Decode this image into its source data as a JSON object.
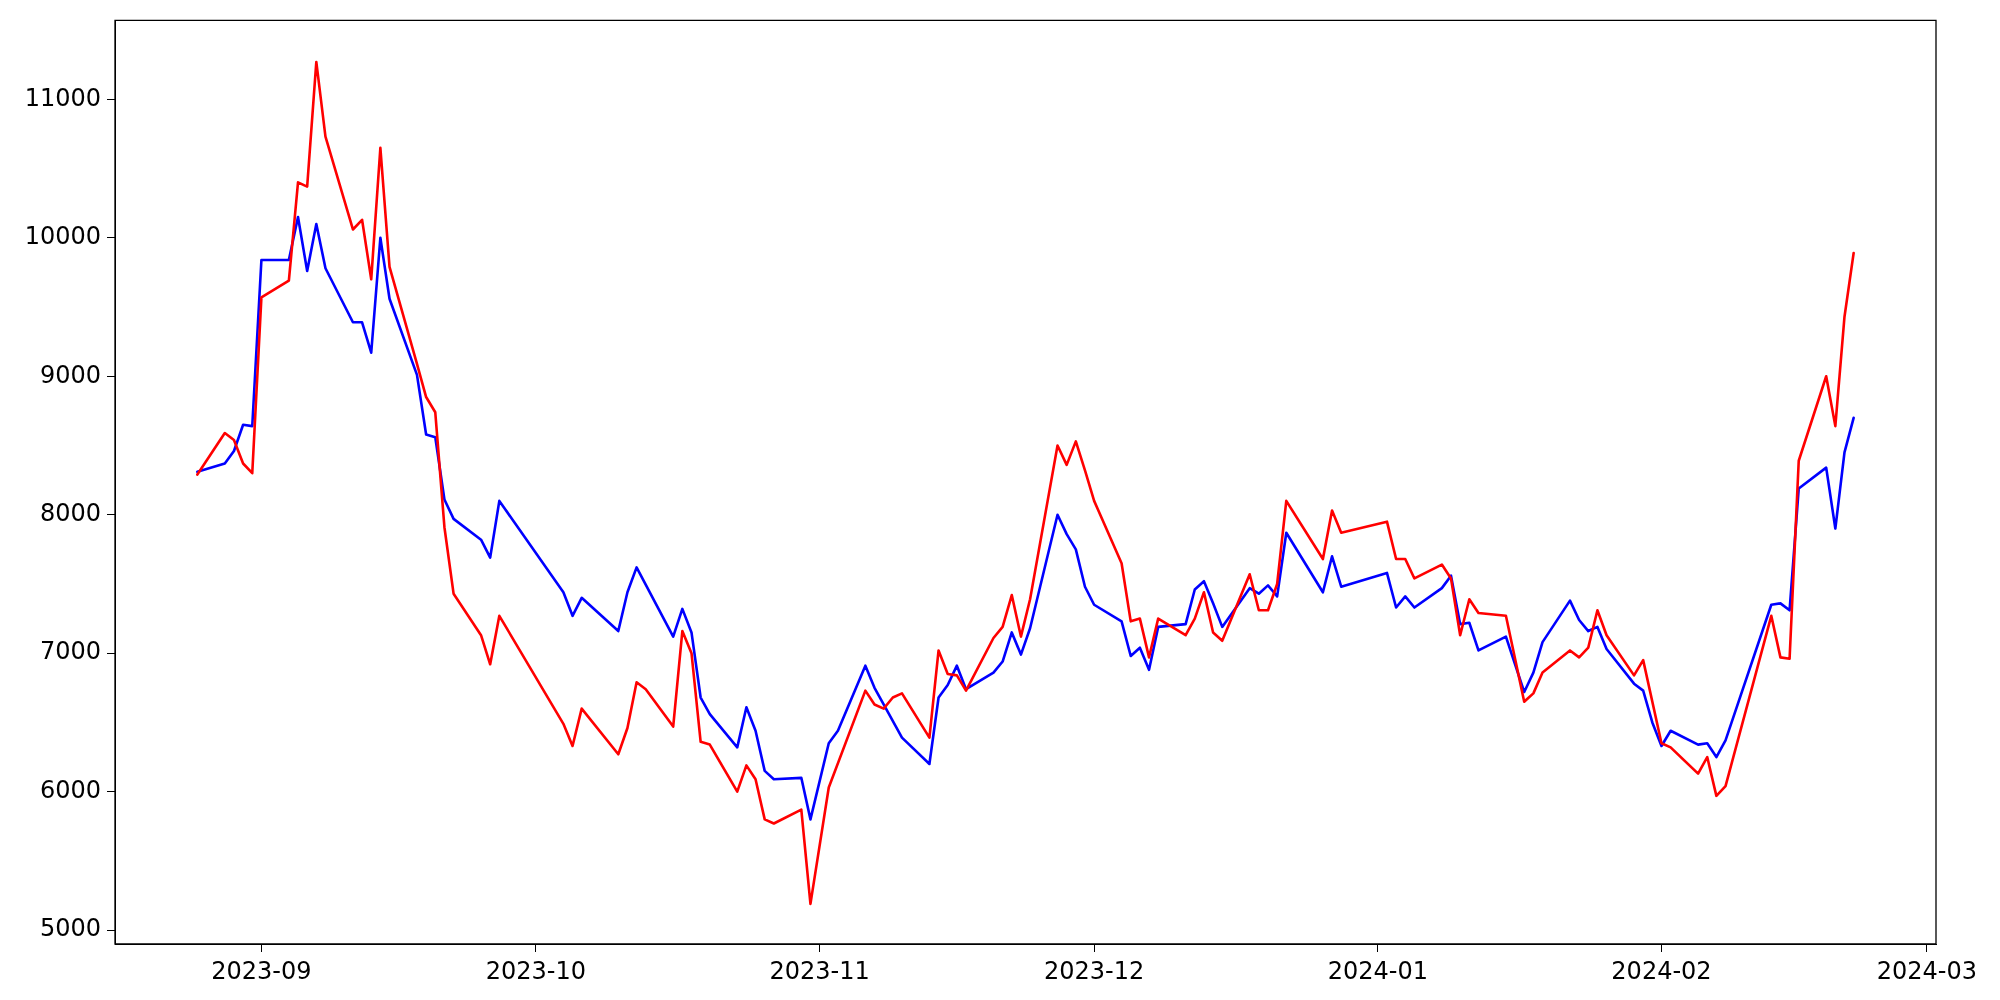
{
  "chart_data": {
    "type": "line",
    "ylim": [
      4900,
      11570
    ],
    "yticks": [
      5000,
      6000,
      7000,
      8000,
      9000,
      10000,
      11000
    ],
    "xlim": [
      "2023-08-16",
      "2024-03-02"
    ],
    "xticks": [
      {
        "value": "2023-09-01",
        "label": "2023-09"
      },
      {
        "value": "2023-10-01",
        "label": "2023-10"
      },
      {
        "value": "2023-11-01",
        "label": "2023-11"
      },
      {
        "value": "2023-12-01",
        "label": "2023-12"
      },
      {
        "value": "2024-01-01",
        "label": "2024-01"
      },
      {
        "value": "2024-02-01",
        "label": "2024-02"
      },
      {
        "value": "2024-03-01",
        "label": "2024-03"
      }
    ],
    "grid": false,
    "legend": false,
    "marker": "none",
    "line_style": "solid",
    "series": [
      {
        "color": "#ff0000",
        "x": [
          "2023-08-25",
          "2023-08-28",
          "2023-08-29",
          "2023-08-30",
          "2023-08-31",
          "2023-09-01",
          "2023-09-04",
          "2023-09-05",
          "2023-09-06",
          "2023-09-07",
          "2023-09-08",
          "2023-09-11",
          "2023-09-12",
          "2023-09-13",
          "2023-09-14",
          "2023-09-15",
          "2023-09-18",
          "2023-09-19",
          "2023-09-20",
          "2023-09-21",
          "2023-09-22",
          "2023-09-25",
          "2023-09-26",
          "2023-09-27",
          "2023-10-04",
          "2023-10-05",
          "2023-10-06",
          "2023-10-10",
          "2023-10-11",
          "2023-10-12",
          "2023-10-13",
          "2023-10-16",
          "2023-10-17",
          "2023-10-18",
          "2023-10-19",
          "2023-10-20",
          "2023-10-23",
          "2023-10-24",
          "2023-10-25",
          "2023-10-26",
          "2023-10-27",
          "2023-10-30",
          "2023-10-31",
          "2023-11-02",
          "2023-11-06",
          "2023-11-07",
          "2023-11-08",
          "2023-11-09",
          "2023-11-10",
          "2023-11-13",
          "2023-11-14",
          "2023-11-15",
          "2023-11-16",
          "2023-11-17",
          "2023-11-20",
          "2023-11-21",
          "2023-11-22",
          "2023-11-23",
          "2023-11-24",
          "2023-11-27",
          "2023-11-28",
          "2023-11-29",
          "2023-11-30",
          "2023-12-01",
          "2023-12-04",
          "2023-12-05",
          "2023-12-06",
          "2023-12-07",
          "2023-12-08",
          "2023-12-11",
          "2023-12-12",
          "2023-12-13",
          "2023-12-14",
          "2023-12-15",
          "2023-12-18",
          "2023-12-19",
          "2023-12-20",
          "2023-12-21",
          "2023-12-22",
          "2023-12-26",
          "2023-12-27",
          "2023-12-28",
          "2024-01-02",
          "2024-01-03",
          "2024-01-04",
          "2024-01-05",
          "2024-01-08",
          "2024-01-09",
          "2024-01-10",
          "2024-01-11",
          "2024-01-12",
          "2024-01-15",
          "2024-01-17",
          "2024-01-18",
          "2024-01-19",
          "2024-01-22",
          "2024-01-23",
          "2024-01-24",
          "2024-01-25",
          "2024-01-26",
          "2024-01-29",
          "2024-01-30",
          "2024-02-01",
          "2024-02-02",
          "2024-02-05",
          "2024-02-06",
          "2024-02-07",
          "2024-02-08",
          "2024-02-13",
          "2024-02-14",
          "2024-02-15",
          "2024-02-16",
          "2024-02-19",
          "2024-02-20",
          "2024-02-21",
          "2024-02-22"
        ],
        "values": [
          8290,
          8590,
          8540,
          8370,
          8300,
          9570,
          9690,
          10400,
          10370,
          11270,
          10730,
          10060,
          10130,
          9700,
          10650,
          9790,
          9090,
          8850,
          8740,
          7910,
          7430,
          7130,
          6920,
          7270,
          6490,
          6330,
          6600,
          6270,
          6460,
          6790,
          6740,
          6470,
          7160,
          7000,
          6360,
          6340,
          6000,
          6190,
          6090,
          5800,
          5770,
          5870,
          5190,
          6030,
          6730,
          6630,
          6600,
          6680,
          6710,
          6390,
          7020,
          6850,
          6840,
          6730,
          7110,
          7190,
          7420,
          7120,
          7390,
          8500,
          8360,
          8530,
          8320,
          8100,
          7650,
          7230,
          7250,
          6970,
          7250,
          7130,
          7250,
          7440,
          7150,
          7090,
          7570,
          7310,
          7310,
          7500,
          8100,
          7680,
          8030,
          7870,
          7950,
          7680,
          7680,
          7540,
          7640,
          7540,
          7130,
          7390,
          7290,
          7270,
          6650,
          6710,
          6860,
          7020,
          6970,
          7040,
          7310,
          7130,
          6840,
          6950,
          6350,
          6320,
          6130,
          6250,
          5970,
          6040,
          7270,
          6970,
          6960,
          8390,
          9000,
          8640,
          9430,
          9890
        ]
      },
      {
        "color": "#0000ff",
        "x": [
          "2023-08-25",
          "2023-08-28",
          "2023-08-29",
          "2023-08-30",
          "2023-08-31",
          "2023-09-01",
          "2023-09-04",
          "2023-09-05",
          "2023-09-06",
          "2023-09-07",
          "2023-09-08",
          "2023-09-11",
          "2023-09-12",
          "2023-09-13",
          "2023-09-14",
          "2023-09-15",
          "2023-09-18",
          "2023-09-19",
          "2023-09-20",
          "2023-09-21",
          "2023-09-22",
          "2023-09-25",
          "2023-09-26",
          "2023-09-27",
          "2023-10-04",
          "2023-10-05",
          "2023-10-06",
          "2023-10-10",
          "2023-10-11",
          "2023-10-12",
          "2023-10-16",
          "2023-10-17",
          "2023-10-18",
          "2023-10-19",
          "2023-10-20",
          "2023-10-23",
          "2023-10-24",
          "2023-10-25",
          "2023-10-26",
          "2023-10-27",
          "2023-10-30",
          "2023-10-31",
          "2023-11-02",
          "2023-11-03",
          "2023-11-06",
          "2023-11-07",
          "2023-11-08",
          "2023-11-10",
          "2023-11-13",
          "2023-11-14",
          "2023-11-15",
          "2023-11-16",
          "2023-11-17",
          "2023-11-20",
          "2023-11-21",
          "2023-11-22",
          "2023-11-23",
          "2023-11-24",
          "2023-11-27",
          "2023-11-28",
          "2023-11-29",
          "2023-11-30",
          "2023-12-01",
          "2023-12-04",
          "2023-12-05",
          "2023-12-06",
          "2023-12-07",
          "2023-12-08",
          "2023-12-11",
          "2023-12-12",
          "2023-12-13",
          "2023-12-14",
          "2023-12-15",
          "2023-12-18",
          "2023-12-19",
          "2023-12-20",
          "2023-12-21",
          "2023-12-22",
          "2023-12-26",
          "2023-12-27",
          "2023-12-28",
          "2024-01-02",
          "2024-01-03",
          "2024-01-04",
          "2024-01-05",
          "2024-01-08",
          "2024-01-09",
          "2024-01-10",
          "2024-01-11",
          "2024-01-12",
          "2024-01-15",
          "2024-01-16",
          "2024-01-17",
          "2024-01-18",
          "2024-01-19",
          "2024-01-22",
          "2024-01-23",
          "2024-01-24",
          "2024-01-25",
          "2024-01-26",
          "2024-01-29",
          "2024-01-30",
          "2024-01-31",
          "2024-02-01",
          "2024-02-02",
          "2024-02-05",
          "2024-02-06",
          "2024-02-07",
          "2024-02-08",
          "2024-02-13",
          "2024-02-14",
          "2024-02-15",
          "2024-02-16",
          "2024-02-19",
          "2024-02-20",
          "2024-02-21",
          "2024-02-22"
        ],
        "values": [
          8310,
          8370,
          8460,
          8650,
          8640,
          9840,
          9840,
          10150,
          9760,
          10100,
          9780,
          9390,
          9390,
          9170,
          10000,
          9560,
          9010,
          8580,
          8560,
          8110,
          7970,
          7820,
          7690,
          8100,
          7440,
          7270,
          7400,
          7160,
          7440,
          7620,
          7120,
          7320,
          7150,
          6680,
          6560,
          6320,
          6610,
          6440,
          6150,
          6090,
          6100,
          5800,
          6350,
          6440,
          6910,
          6750,
          6630,
          6390,
          6200,
          6680,
          6770,
          6910,
          6740,
          6860,
          6940,
          7150,
          6990,
          7180,
          8000,
          7860,
          7750,
          7480,
          7350,
          7230,
          6980,
          7040,
          6880,
          7190,
          7210,
          7460,
          7520,
          7360,
          7190,
          7470,
          7430,
          7490,
          7410,
          7870,
          7440,
          7700,
          7480,
          7580,
          7330,
          7410,
          7330,
          7470,
          7560,
          7210,
          7220,
          7020,
          7120,
          6920,
          6720,
          6860,
          7080,
          7380,
          7240,
          7160,
          7190,
          7030,
          6780,
          6730,
          6500,
          6330,
          6440,
          6340,
          6350,
          6250,
          6370,
          7350,
          7360,
          7310,
          8190,
          8340,
          7900,
          8450,
          8700
        ]
      }
    ]
  }
}
